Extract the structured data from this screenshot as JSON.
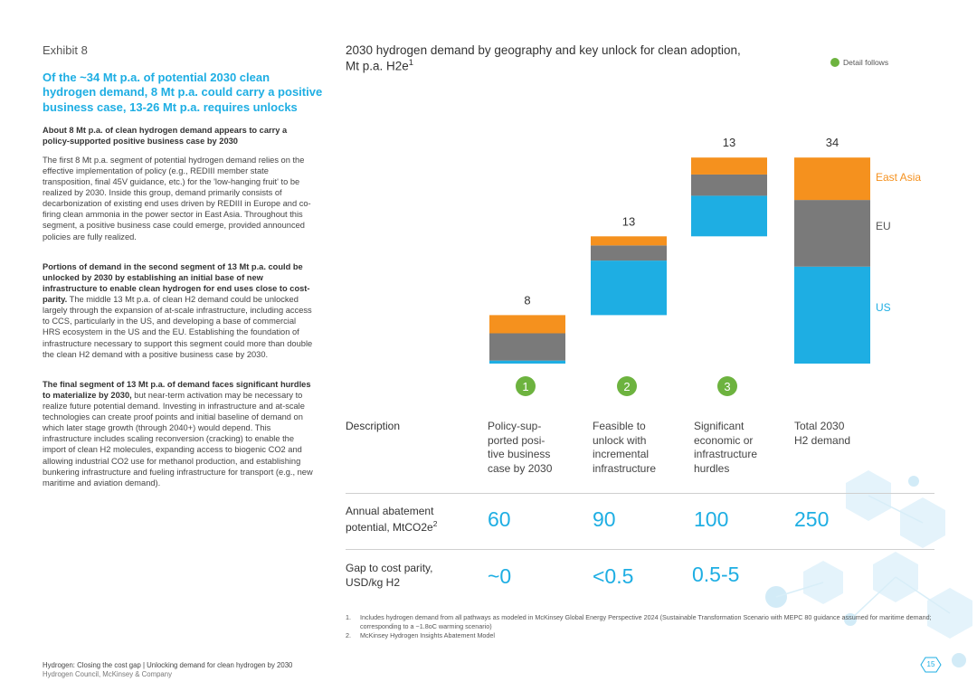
{
  "exhibit_label": "Exhibit 8",
  "headline": "Of the ~34 Mt p.a. of potential 2030 clean hydrogen demand, 8 Mt p.a. could carry a positive business case, 13-26 Mt p.a. requires unlocks",
  "lead": "About 8 Mt p.a. of clean hydrogen demand appears to carry a policy-supported positive business case by 2030",
  "para1": "The first 8 Mt p.a. segment of potential hydrogen demand relies on the effective implementation of policy (e.g., REDIII member state transposition, final 45V guidance, etc.) for the 'low-hanging fruit' to be realized by 2030. Inside this group, demand primarily consists of decarbonization of existing end uses driven by REDIII in Europe and co-firing clean ammonia in the power sector in East Asia. Throughout this segment, a positive business case could emerge, provided announced policies are fully realized.",
  "para2_bold": "Portions of demand in the second segment of 13 Mt p.a. could be unlocked by 2030 by establishing an initial base of new infrastructure to enable clean hydrogen for end uses close to cost-parity.",
  "para2_rest": "The middle 13 Mt p.a. of clean H2 demand could be unlocked largely through the expansion of at-scale infrastructure, including access to CCS, particularly in the US, and developing a base of commercial HRS ecosystem in the US and the EU. Establishing the foundation of infrastructure necessary to support this segment could more than double the clean H2 demand with a positive business case by 2030.",
  "para3_bold": "The final segment of 13 Mt p.a. of demand faces significant hurdles to materialize by 2030,",
  "para3_rest": "but near-term activation may be necessary to realize future potential demand. Investing in infrastructure and at-scale technologies can create proof points and initial baseline of demand on which later stage growth (through 2040+) would depend. This infrastructure includes scaling reconversion (cracking) to enable the import of clean H2 molecules, expanding access to biogenic CO2 and allowing industrial CO2 use for methanol production, and establishing bunkering infrastructure and fueling infrastructure for transport (e.g., new maritime and aviation demand).",
  "chart_title_line1": "2030 hydrogen demand by geography and key unlock for clean adoption,",
  "chart_title_line2": "Mt p.a. H2e",
  "chart_title_sup": "1",
  "legend_label": "Detail follows",
  "colors": {
    "accent": "#1eaee3",
    "us": "#1eaee3",
    "eu": "#7a7a7a",
    "east_asia": "#f5911e",
    "badge": "#6db33f"
  },
  "chart_data": {
    "type": "bar",
    "subtype": "waterfall-stacked",
    "unit": "Mt p.a. H2e",
    "categories": [
      "Policy-supported positive business case by 2030",
      "Feasible to unlock with incremental infrastructure",
      "Significant economic or infrastructure hurdles",
      "Total 2030 H2 demand"
    ],
    "totals": [
      8,
      13,
      13,
      34
    ],
    "total_labels": [
      "8",
      "13",
      "13",
      "34"
    ],
    "series": [
      {
        "name": "US",
        "values": [
          0.5,
          9,
          6.7,
          16
        ]
      },
      {
        "name": "EU",
        "values": [
          4.5,
          2.5,
          3.5,
          11
        ]
      },
      {
        "name": "East Asia",
        "values": [
          3,
          1.5,
          2.8,
          7
        ]
      }
    ],
    "waterfall_start": [
      0,
      8,
      21,
      0
    ],
    "legend_labels": [
      "East Asia",
      "EU",
      "US"
    ],
    "badges": [
      "1",
      "2",
      "3"
    ]
  },
  "table": {
    "description_label": "Description",
    "descriptions": [
      [
        "Policy-sup-",
        "ported posi-",
        "tive business",
        "case by 2030"
      ],
      [
        "Feasible to",
        "unlock with",
        "incremental",
        "infrastructure"
      ],
      [
        "Significant",
        "economic or",
        "infrastructure",
        "hurdles"
      ],
      [
        "Total 2030",
        "H2 demand"
      ]
    ],
    "abatement_label_1": "Annual abatement",
    "abatement_label_2": "potential, MtCO2e",
    "abatement_label_sup": "2",
    "abatement_values": [
      "60",
      "90",
      "100",
      "250"
    ],
    "gap_label_1": "Gap to cost parity,",
    "gap_label_2": "USD/kg H2",
    "gap_values": [
      "~0",
      "<0.5",
      "0.5-5"
    ]
  },
  "footnotes": [
    {
      "num": "1.",
      "text": "Includes hydrogen demand from all pathways as modeled in McKinsey Global Energy Perspective 2024 (Sustainable Transformation Scenario with MEPC 80 guidance assumed for maritime demand; corresponding to a ~1.8oC warming scenario)"
    },
    {
      "num": "2.",
      "text": "McKinsey Hydrogen Insights Abatement Model"
    }
  ],
  "footer_title": "Hydrogen: Closing the cost gap | Unlocking demand for clean hydrogen by 2030",
  "footer_sub": "Hydrogen Council, McKinsey & Company",
  "page_number": "15"
}
